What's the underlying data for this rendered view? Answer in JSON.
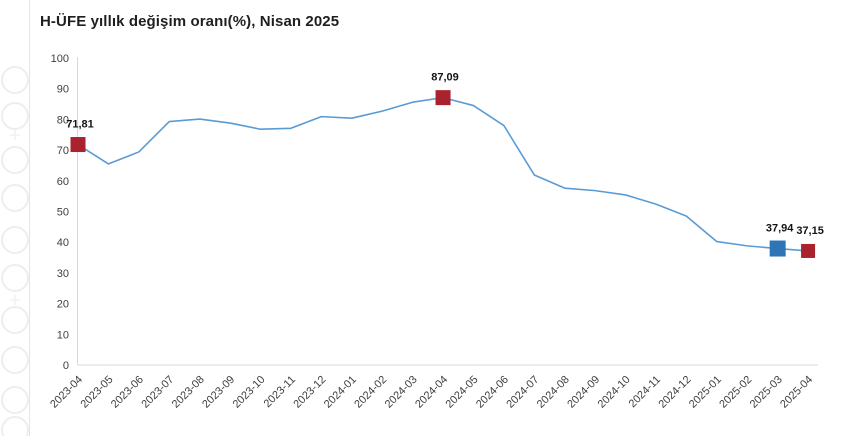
{
  "title": "H-ÜFE yıllık değişim oranı(%), Nisan 2025",
  "chart_data": {
    "type": "line",
    "title": "H-ÜFE yıllık değişim oranı(%), Nisan 2025",
    "categories": [
      "2023-04",
      "2023-05",
      "2023-06",
      "2023-07",
      "2023-08",
      "2023-09",
      "2023-10",
      "2023-11",
      "2023-12",
      "2024-01",
      "2024-02",
      "2024-03",
      "2024-04",
      "2024-05",
      "2024-06",
      "2024-07",
      "2024-08",
      "2024-09",
      "2024-10",
      "2024-11",
      "2024-12",
      "2025-01",
      "2025-02",
      "2025-03",
      "2025-04"
    ],
    "values": [
      71.81,
      65.5,
      69.4,
      79.3,
      80.1,
      78.8,
      76.8,
      77.1,
      80.9,
      80.4,
      82.7,
      85.6,
      87.09,
      84.5,
      78.0,
      61.9,
      57.6,
      56.8,
      55.4,
      52.4,
      48.5,
      40.2,
      38.8,
      37.94,
      37.15
    ],
    "ylim": [
      0,
      100
    ],
    "y_ticks": [
      0,
      10,
      20,
      30,
      40,
      50,
      60,
      70,
      80,
      90,
      100
    ],
    "grid": false,
    "legend": "none",
    "x_tick_rotation_deg": 45,
    "line_color": "#5B9BD5",
    "axis_color": "#D9D9D9",
    "tick_label_color": "#3f3f3f",
    "data_label_color": "#141414",
    "labeled_points": [
      {
        "category": "2023-04",
        "value": 71.81,
        "label": "71,81",
        "marker_color": "#A8232E",
        "marker_size": 15
      },
      {
        "category": "2024-04",
        "value": 87.09,
        "label": "87,09",
        "marker_color": "#A8232E",
        "marker_size": 15
      },
      {
        "category": "2025-03",
        "value": 37.94,
        "label": "37,94",
        "marker_color": "#2E75B6",
        "marker_size": 16
      },
      {
        "category": "2025-04",
        "value": 37.15,
        "label": "37,15",
        "marker_color": "#A8232E",
        "marker_size": 14
      }
    ]
  }
}
